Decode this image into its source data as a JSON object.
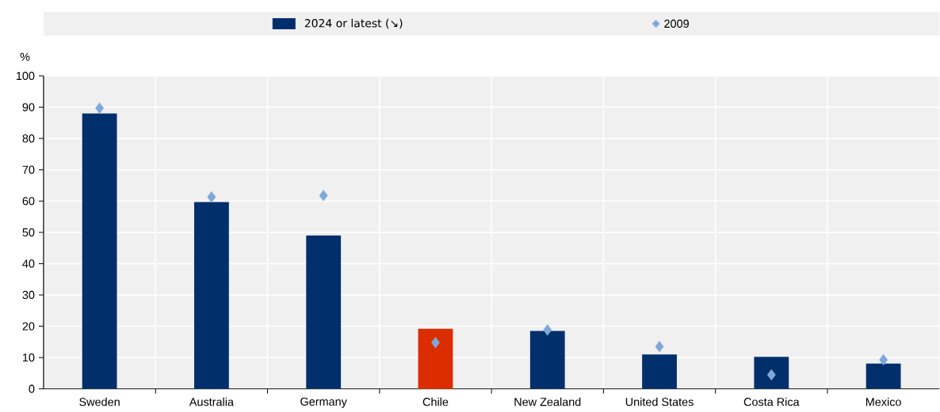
{
  "chart_data": {
    "type": "bar",
    "categories": [
      "Sweden",
      "Australia",
      "Germany",
      "Chile",
      "New Zealand",
      "United States",
      "Costa Rica",
      "Mexico"
    ],
    "series": [
      {
        "name": "2024 or latest (↘)",
        "colors": [
          "#002f6c",
          "#002f6c",
          "#002f6c",
          "#dc2d00",
          "#002f6c",
          "#002f6c",
          "#002f6c",
          "#002f6c"
        ],
        "values": [
          88,
          59.7,
          49,
          19.2,
          18.5,
          11,
          10.2,
          8.1
        ]
      },
      {
        "name": "2009",
        "type": "scatter",
        "color": "#7fa8d9",
        "values": [
          89.7,
          61.3,
          61.8,
          14.8,
          18.8,
          13.5,
          4.5,
          9.3
        ]
      }
    ],
    "marker": "diamond",
    "ylabel": "%",
    "ylim": [
      0,
      100
    ],
    "yticks": [
      0,
      10,
      20,
      30,
      40,
      50,
      60,
      70,
      80,
      90,
      100
    ],
    "grid": true,
    "legend": "top"
  }
}
